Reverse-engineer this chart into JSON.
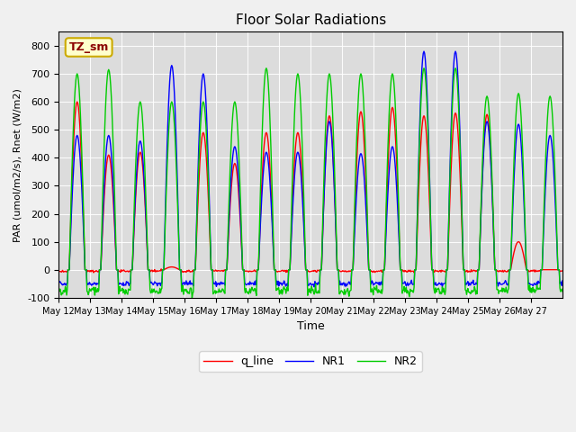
{
  "title": "Floor Solar Radiations",
  "xlabel": "Time",
  "ylabel": "PAR (umol/m2/s), Rnet (W/m2)",
  "ylim": [
    -100,
    850
  ],
  "annotation_text": "TZ_sm",
  "xtick_labels": [
    "May 12",
    "May 13",
    "May 14",
    "May 15",
    "May 16",
    "May 17",
    "May 18",
    "May 19",
    "May 20",
    "May 21",
    "May 22",
    "May 23",
    "May 24",
    "May 25",
    "May 26",
    "May 27"
  ],
  "legend_labels": [
    "q_line",
    "NR1",
    "NR2"
  ],
  "line_colors": [
    "#ff0000",
    "#0000ff",
    "#00cc00"
  ],
  "fig_facecolor": "#f0f0f0",
  "axes_facecolor": "#dcdcdc",
  "yticks": [
    -100,
    0,
    100,
    200,
    300,
    400,
    500,
    600,
    700,
    800
  ]
}
